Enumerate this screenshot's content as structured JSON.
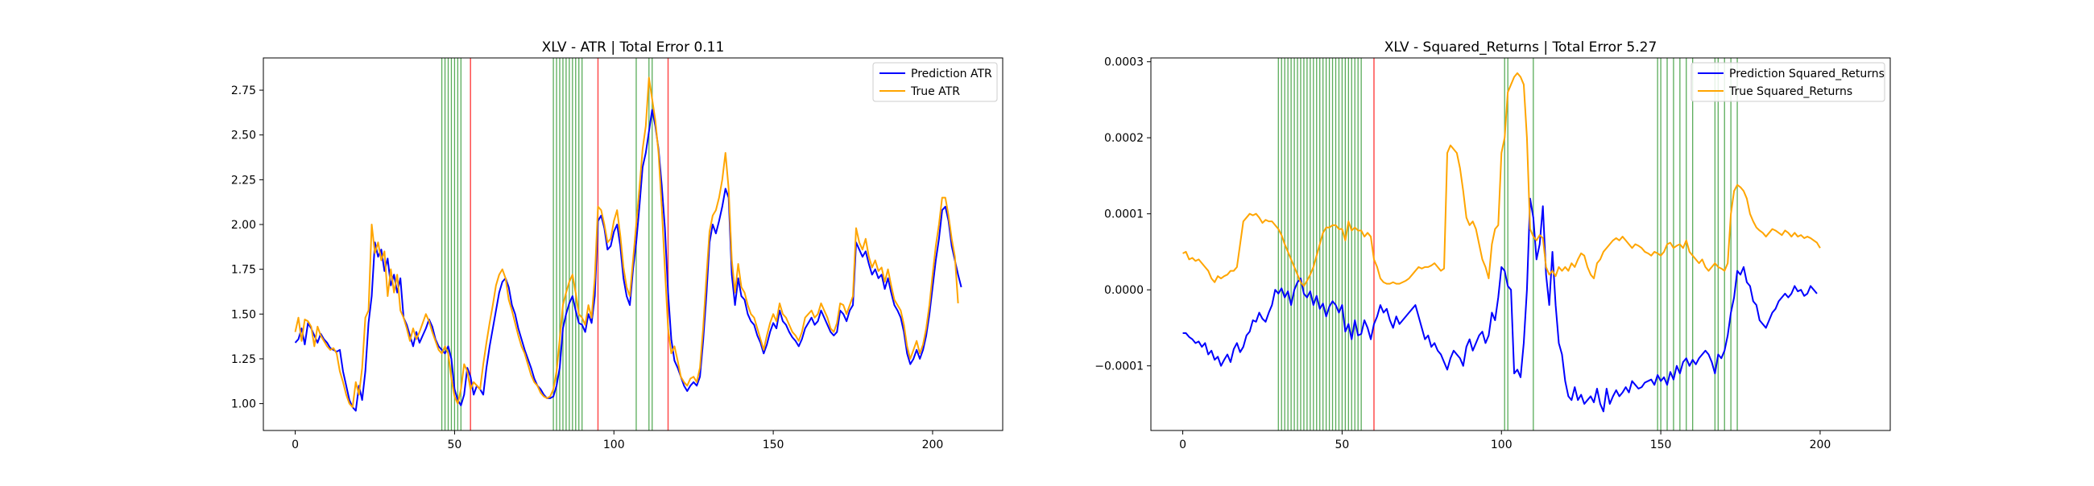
{
  "chart_data": [
    {
      "type": "line",
      "title": "XLV - ATR | Total Error 0.11",
      "xlabel": "",
      "ylabel": "",
      "xlim": [
        -10,
        222
      ],
      "ylim": [
        0.85,
        2.93
      ],
      "xticks": [
        0,
        50,
        100,
        150,
        200
      ],
      "yticks": [
        1.0,
        1.25,
        1.5,
        1.75,
        2.0,
        2.25,
        2.5,
        2.75
      ],
      "ytick_decimals": 2,
      "grid": false,
      "legend_position": "top-right",
      "vlines_green": [
        46,
        47,
        48,
        49,
        50,
        51,
        52,
        81,
        82,
        83,
        84,
        85,
        86,
        87,
        88,
        89,
        90,
        107,
        111,
        112
      ],
      "vlines_red": [
        55,
        95,
        117
      ],
      "series": [
        {
          "name": "Prediction ATR",
          "color": "#0000ff",
          "x0": 0,
          "values": [
            1.34,
            1.36,
            1.42,
            1.33,
            1.45,
            1.42,
            1.38,
            1.34,
            1.39,
            1.36,
            1.34,
            1.31,
            1.3,
            1.29,
            1.3,
            1.18,
            1.1,
            1.02,
            0.98,
            0.96,
            1.1,
            1.02,
            1.18,
            1.45,
            1.6,
            1.9,
            1.82,
            1.86,
            1.74,
            1.81,
            1.66,
            1.72,
            1.62,
            1.7,
            1.48,
            1.44,
            1.38,
            1.32,
            1.4,
            1.34,
            1.38,
            1.42,
            1.47,
            1.43,
            1.36,
            1.32,
            1.3,
            1.28,
            1.32,
            1.25,
            1.08,
            1.02,
            0.99,
            1.05,
            1.2,
            1.15,
            1.05,
            1.1,
            1.08,
            1.05,
            1.2,
            1.32,
            1.42,
            1.52,
            1.62,
            1.68,
            1.7,
            1.65,
            1.55,
            1.5,
            1.42,
            1.36,
            1.3,
            1.25,
            1.2,
            1.14,
            1.1,
            1.08,
            1.05,
            1.03,
            1.03,
            1.04,
            1.1,
            1.2,
            1.42,
            1.5,
            1.56,
            1.6,
            1.52,
            1.45,
            1.44,
            1.4,
            1.5,
            1.45,
            1.6,
            2.02,
            2.05,
            1.98,
            1.86,
            1.88,
            1.96,
            2.0,
            1.88,
            1.7,
            1.6,
            1.55,
            1.75,
            1.9,
            2.1,
            2.32,
            2.4,
            2.52,
            2.64,
            2.55,
            2.42,
            2.22,
            1.98,
            1.62,
            1.36,
            1.24,
            1.2,
            1.15,
            1.1,
            1.07,
            1.1,
            1.12,
            1.1,
            1.15,
            1.35,
            1.6,
            1.9,
            2.0,
            1.95,
            2.02,
            2.1,
            2.2,
            2.15,
            1.72,
            1.55,
            1.7,
            1.6,
            1.58,
            1.5,
            1.46,
            1.44,
            1.38,
            1.34,
            1.28,
            1.33,
            1.4,
            1.45,
            1.42,
            1.52,
            1.46,
            1.44,
            1.4,
            1.37,
            1.35,
            1.32,
            1.36,
            1.42,
            1.45,
            1.48,
            1.44,
            1.46,
            1.52,
            1.48,
            1.44,
            1.4,
            1.38,
            1.4,
            1.52,
            1.5,
            1.46,
            1.52,
            1.55,
            1.9,
            1.86,
            1.82,
            1.85,
            1.78,
            1.72,
            1.75,
            1.7,
            1.72,
            1.64,
            1.7,
            1.62,
            1.55,
            1.52,
            1.48,
            1.4,
            1.28,
            1.22,
            1.25,
            1.3,
            1.25,
            1.3,
            1.38,
            1.5,
            1.65,
            1.8,
            1.92,
            2.08,
            2.1,
            2.02,
            1.88,
            1.8,
            1.72,
            1.65
          ]
        },
        {
          "name": "True ATR",
          "color": "#ffa500",
          "x0": 0,
          "values": [
            1.4,
            1.48,
            1.35,
            1.47,
            1.46,
            1.43,
            1.32,
            1.43,
            1.38,
            1.35,
            1.32,
            1.3,
            1.31,
            1.28,
            1.18,
            1.12,
            1.05,
            1.0,
            0.98,
            1.12,
            1.05,
            1.2,
            1.48,
            1.52,
            2.0,
            1.84,
            1.9,
            1.8,
            1.85,
            1.6,
            1.75,
            1.62,
            1.72,
            1.52,
            1.48,
            1.42,
            1.35,
            1.42,
            1.36,
            1.4,
            1.45,
            1.5,
            1.46,
            1.4,
            1.35,
            1.3,
            1.28,
            1.32,
            1.28,
            1.14,
            1.04,
            1.0,
            1.08,
            1.22,
            1.18,
            1.08,
            1.12,
            1.1,
            1.08,
            1.22,
            1.34,
            1.45,
            1.55,
            1.66,
            1.72,
            1.75,
            1.7,
            1.58,
            1.52,
            1.45,
            1.38,
            1.32,
            1.28,
            1.22,
            1.16,
            1.12,
            1.1,
            1.06,
            1.04,
            1.03,
            1.04,
            1.08,
            1.18,
            1.36,
            1.55,
            1.62,
            1.68,
            1.72,
            1.62,
            1.5,
            1.48,
            1.44,
            1.55,
            1.48,
            1.7,
            2.1,
            2.08,
            2.0,
            1.9,
            1.92,
            2.02,
            2.08,
            1.94,
            1.76,
            1.65,
            1.6,
            1.8,
            2.0,
            2.2,
            2.42,
            2.55,
            2.82,
            2.7,
            2.58,
            2.4,
            2.1,
            1.75,
            1.42,
            1.28,
            1.32,
            1.24,
            1.15,
            1.12,
            1.1,
            1.14,
            1.15,
            1.12,
            1.2,
            1.42,
            1.7,
            1.96,
            2.05,
            2.08,
            2.15,
            2.25,
            2.4,
            2.2,
            1.8,
            1.62,
            1.78,
            1.65,
            1.62,
            1.55,
            1.5,
            1.48,
            1.42,
            1.36,
            1.3,
            1.38,
            1.45,
            1.5,
            1.46,
            1.56,
            1.5,
            1.48,
            1.44,
            1.4,
            1.38,
            1.35,
            1.4,
            1.48,
            1.5,
            1.52,
            1.48,
            1.5,
            1.56,
            1.52,
            1.48,
            1.42,
            1.4,
            1.45,
            1.56,
            1.55,
            1.5,
            1.55,
            1.6,
            1.98,
            1.9,
            1.86,
            1.92,
            1.82,
            1.76,
            1.8,
            1.74,
            1.76,
            1.68,
            1.75,
            1.66,
            1.58,
            1.55,
            1.52,
            1.44,
            1.32,
            1.25,
            1.3,
            1.35,
            1.28,
            1.33,
            1.42,
            1.55,
            1.72,
            1.88,
            2.0,
            2.15,
            2.15,
            2.05,
            1.92,
            1.82,
            1.56
          ]
        }
      ]
    },
    {
      "type": "line",
      "title": "XLV - Squared_Returns | Total Error 5.27",
      "xlabel": "",
      "ylabel": "",
      "xlim": [
        -10,
        222
      ],
      "ylim": [
        -0.000185,
        0.000305
      ],
      "xticks": [
        0,
        50,
        100,
        150,
        200
      ],
      "yticks": [
        -0.0001,
        0.0,
        0.0001,
        0.0002,
        0.0003
      ],
      "ytick_decimals": 4,
      "grid": false,
      "legend_position": "top-right",
      "vlines_green": [
        30,
        31,
        32,
        33,
        34,
        35,
        36,
        37,
        38,
        39,
        40,
        41,
        42,
        43,
        44,
        45,
        46,
        47,
        48,
        49,
        50,
        51,
        52,
        53,
        54,
        55,
        56,
        101,
        102,
        110,
        149,
        150,
        152,
        154,
        156,
        158,
        160,
        167,
        168,
        170,
        172,
        174
      ],
      "vlines_red": [
        60
      ],
      "series": [
        {
          "name": "Prediction Squared_Returns",
          "color": "#0000ff",
          "x0": 0,
          "values": [
            -5.7e-05,
            -5.7e-05,
            -6.2e-05,
            -6.5e-05,
            -7e-05,
            -6.8e-05,
            -7.5e-05,
            -7e-05,
            -8.5e-05,
            -8e-05,
            -9.2e-05,
            -8.8e-05,
            -0.0001,
            -9.2e-05,
            -8.5e-05,
            -9.5e-05,
            -7.8e-05,
            -7e-05,
            -8.2e-05,
            -7.5e-05,
            -6e-05,
            -5.5e-05,
            -4e-05,
            -4.2e-05,
            -3e-05,
            -3.8e-05,
            -4.2e-05,
            -3e-05,
            -2e-05,
            0.0,
            -5e-06,
            2e-06,
            -1e-05,
            -2e-06,
            -2e-05,
            0.0,
            1e-05,
            1.5e-05,
            -5e-06,
            -1e-05,
            -2e-06,
            -2e-05,
            -8e-06,
            -2.5e-05,
            -1.8e-05,
            -3.5e-05,
            -2.2e-05,
            -1.5e-05,
            -2e-05,
            -3e-05,
            -2e-05,
            -5.5e-05,
            -4.5e-05,
            -6.5e-05,
            -4e-05,
            -6e-05,
            -5.8e-05,
            -4e-05,
            -5e-05,
            -6.5e-05,
            -4.5e-05,
            -3.5e-05,
            -2e-05,
            -3e-05,
            -2.5e-05,
            -4e-05,
            -5e-05,
            -3.5e-05,
            -4.5e-05,
            -4e-05,
            -3.5e-05,
            -3e-05,
            -2.5e-05,
            -2e-05,
            -3.5e-05,
            -5e-05,
            -6.5e-05,
            -6e-05,
            -7.5e-05,
            -7e-05,
            -8e-05,
            -8.5e-05,
            -9.5e-05,
            -0.000105,
            -9e-05,
            -8e-05,
            -8.5e-05,
            -9e-05,
            -0.0001,
            -7.5e-05,
            -6.5e-05,
            -8e-05,
            -7e-05,
            -6e-05,
            -5.5e-05,
            -7e-05,
            -6e-05,
            -3e-05,
            -4e-05,
            -1e-05,
            3e-05,
            2.5e-05,
            5e-06,
            0.0,
            -0.00011,
            -0.000105,
            -0.000115,
            -7e-05,
            0.0,
            0.00012,
            9.5e-05,
            4e-05,
            6e-05,
            0.00011,
            2e-05,
            -2e-05,
            5e-05,
            -2e-05,
            -7e-05,
            -8.5e-05,
            -0.00012,
            -0.00014,
            -0.000145,
            -0.000128,
            -0.000145,
            -0.000138,
            -0.00015,
            -0.000145,
            -0.00014,
            -0.000148,
            -0.00013,
            -0.00015,
            -0.00016,
            -0.00013,
            -0.00015,
            -0.00014,
            -0.000132,
            -0.00014,
            -0.000135,
            -0.000128,
            -0.000135,
            -0.00012,
            -0.000125,
            -0.00013,
            -0.000128,
            -0.000122,
            -0.00012,
            -0.000118,
            -0.000125,
            -0.000112,
            -0.00012,
            -0.000115,
            -0.000125,
            -0.000108,
            -0.000118,
            -0.0001,
            -0.00011,
            -9.5e-05,
            -9e-05,
            -0.0001,
            -9.2e-05,
            -9.8e-05,
            -9e-05,
            -8.5e-05,
            -8e-05,
            -8.5e-05,
            -9.5e-05,
            -0.00011,
            -8.5e-05,
            -9e-05,
            -8e-05,
            -6e-05,
            -3e-05,
            -1e-05,
            2.5e-05,
            2e-05,
            3e-05,
            1e-05,
            5e-06,
            -1.5e-05,
            -2e-05,
            -4e-05,
            -4.5e-05,
            -5e-05,
            -4e-05,
            -3e-05,
            -2.5e-05,
            -1.5e-05,
            -1e-05,
            -5e-06,
            -1e-05,
            -5e-06,
            5e-06,
            -2e-06,
            0.0,
            -8e-06,
            -5e-06,
            5e-06,
            0.0,
            -5e-06
          ]
        },
        {
          "name": "True Squared_Returns",
          "color": "#ffa500",
          "x0": 0,
          "values": [
            4.8e-05,
            5e-05,
            4e-05,
            4.2e-05,
            3.8e-05,
            4e-05,
            3.5e-05,
            3e-05,
            2.5e-05,
            1.5e-05,
            1e-05,
            1.8e-05,
            1.5e-05,
            1.8e-05,
            2e-05,
            2.5e-05,
            2.5e-05,
            3e-05,
            6e-05,
            9e-05,
            9.5e-05,
            0.0001,
            9.8e-05,
            0.0001,
            9.5e-05,
            8.8e-05,
            9.2e-05,
            9e-05,
            9e-05,
            8.5e-05,
            8e-05,
            7.2e-05,
            6e-05,
            5e-05,
            4e-05,
            3e-05,
            2e-05,
            1e-05,
            5e-06,
            1.2e-05,
            2e-05,
            3e-05,
            4.5e-05,
            6e-05,
            7.5e-05,
            8.2e-05,
            8.2e-05,
            8.5e-05,
            8.5e-05,
            8e-05,
            8e-05,
            6.5e-05,
            9e-05,
            7.8e-05,
            8.2e-05,
            7.8e-05,
            7.8e-05,
            7e-05,
            7.5e-05,
            7e-05,
            4e-05,
            3e-05,
            1.5e-05,
            1e-05,
            8e-06,
            8e-06,
            1e-05,
            8e-06,
            8e-06,
            1e-05,
            1.2e-05,
            1.5e-05,
            2e-05,
            2.5e-05,
            3e-05,
            2.8e-05,
            3e-05,
            3e-05,
            3.2e-05,
            3.5e-05,
            3e-05,
            2.5e-05,
            2.8e-05,
            0.00018,
            0.00019,
            0.000185,
            0.00018,
            0.00016,
            0.00013,
            9.5e-05,
            8.5e-05,
            9e-05,
            8e-05,
            6e-05,
            4e-05,
            3e-05,
            1.5e-05,
            6e-05,
            8e-05,
            8.5e-05,
            0.00018,
            0.0002,
            0.00026,
            0.00027,
            0.00028,
            0.000285,
            0.00028,
            0.00027,
            0.0002,
            8e-05,
            7e-05,
            6.5e-05,
            7.2e-05,
            6.8e-05,
            3e-05,
            2e-05,
            2.5e-05,
            1.8e-05,
            3e-05,
            2.5e-05,
            3e-05,
            2.5e-05,
            3.5e-05,
            3e-05,
            4e-05,
            4.8e-05,
            4.5e-05,
            3e-05,
            2e-05,
            1.5e-05,
            3.5e-05,
            4e-05,
            5e-05,
            5.5e-05,
            6e-05,
            6.5e-05,
            6.8e-05,
            6.5e-05,
            7e-05,
            6.5e-05,
            6e-05,
            5.5e-05,
            6e-05,
            5.8e-05,
            5.5e-05,
            5e-05,
            4.8e-05,
            4.5e-05,
            5e-05,
            4.8e-05,
            4.5e-05,
            5e-05,
            6e-05,
            6.2e-05,
            5.5e-05,
            5.8e-05,
            6e-05,
            5.5e-05,
            6.5e-05,
            5e-05,
            4.5e-05,
            4e-05,
            3.5e-05,
            4e-05,
            3e-05,
            2.5e-05,
            3e-05,
            3.5e-05,
            3e-05,
            2.8e-05,
            2.5e-05,
            3.5e-05,
            0.0001,
            0.00013,
            0.000138,
            0.000135,
            0.00013,
            0.00012,
            0.0001,
            9e-05,
            8.2e-05,
            7.8e-05,
            7.5e-05,
            7e-05,
            7.5e-05,
            8e-05,
            7.8e-05,
            7.5e-05,
            7.2e-05,
            7.8e-05,
            7.5e-05,
            7e-05,
            7.5e-05,
            7e-05,
            7.2e-05,
            6.8e-05,
            7e-05,
            6.8e-05,
            6.5e-05,
            6.2e-05,
            5.5e-05
          ]
        }
      ]
    }
  ]
}
